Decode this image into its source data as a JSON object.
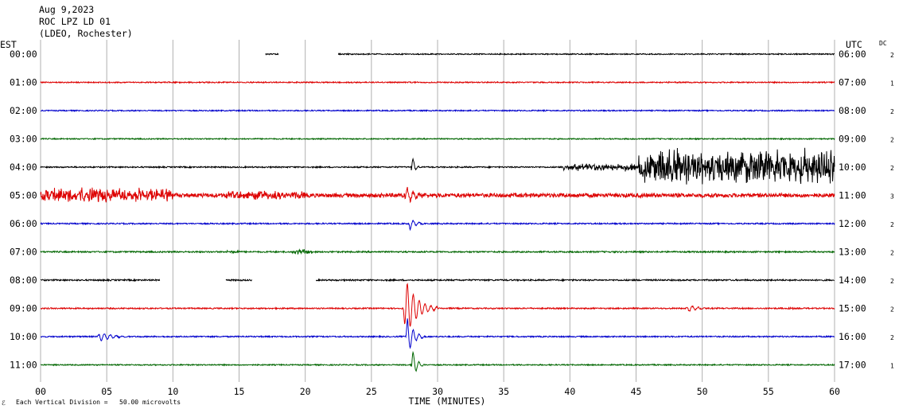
{
  "header": {
    "date": "Aug 9,2023",
    "station": "ROC LPZ LD 01",
    "network": "(LDEO, Rochester)"
  },
  "left_zone": "EST",
  "right_zone": "UTC",
  "dc_label": "DC",
  "scale_note": "Each Vertical Division =   50.00 microvolts",
  "corner_mark": "ℰ",
  "chart_data": {
    "type": "line",
    "xlabel": "TIME (MINUTES)",
    "xlim": [
      0,
      60
    ],
    "xticks": [
      "00",
      "05",
      "10",
      "15",
      "20",
      "25",
      "30",
      "35",
      "40",
      "45",
      "50",
      "55",
      "60"
    ],
    "vertical_divisions_minutes": 5,
    "trace_colors": [
      "#000000",
      "#dd0000",
      "#0000cc",
      "#006600"
    ],
    "rows": [
      {
        "est": "00:00",
        "utc": "06:00",
        "dc": "2",
        "segments": [
          [
            17,
            18
          ],
          [
            22.5,
            60
          ]
        ],
        "noise": 0.7,
        "events": []
      },
      {
        "est": "01:00",
        "utc": "07:00",
        "dc": "1",
        "segments": [
          [
            0,
            60
          ]
        ],
        "noise": 0.7,
        "events": []
      },
      {
        "est": "02:00",
        "utc": "08:00",
        "dc": "2",
        "segments": [
          [
            0,
            60
          ]
        ],
        "noise": 0.7,
        "events": []
      },
      {
        "est": "03:00",
        "utc": "09:00",
        "dc": "2",
        "segments": [
          [
            0,
            60
          ]
        ],
        "noise": 0.7,
        "events": []
      },
      {
        "est": "04:00",
        "utc": "10:00",
        "dc": "2",
        "segments": [
          [
            0,
            60
          ]
        ],
        "noise": 0.8,
        "events": [
          {
            "start": 39.5,
            "end": 45.2,
            "amp": 5,
            "kind": "noise"
          },
          {
            "start": 45.2,
            "end": 60,
            "amp": 24,
            "kind": "noise"
          },
          {
            "start": 28,
            "end": 28.6,
            "amp": 22,
            "kind": "wave"
          }
        ]
      },
      {
        "est": "05:00",
        "utc": "11:00",
        "dc": "3",
        "segments": [
          [
            0,
            60
          ]
        ],
        "noise": 2.5,
        "events": [
          {
            "start": 0,
            "end": 10,
            "amp": 9,
            "kind": "noise"
          },
          {
            "start": 14,
            "end": 20,
            "amp": 5,
            "kind": "noise"
          },
          {
            "start": 27.5,
            "end": 29.5,
            "amp": 12,
            "kind": "wave"
          }
        ]
      },
      {
        "est": "06:00",
        "utc": "12:00",
        "dc": "2",
        "segments": [
          [
            0,
            60
          ]
        ],
        "noise": 0.8,
        "events": [
          {
            "start": 27.8,
            "end": 29,
            "amp": 10,
            "kind": "wave"
          }
        ]
      },
      {
        "est": "07:00",
        "utc": "13:00",
        "dc": "2",
        "segments": [
          [
            0,
            60
          ]
        ],
        "noise": 0.9,
        "events": [
          {
            "start": 14,
            "end": 15,
            "amp": 2,
            "kind": "noise"
          },
          {
            "start": 19,
            "end": 20.5,
            "amp": 3,
            "kind": "noise"
          }
        ]
      },
      {
        "est": "08:00",
        "utc": "14:00",
        "dc": "2",
        "segments": [
          [
            0,
            9
          ],
          [
            14,
            16
          ],
          [
            20.8,
            60
          ]
        ],
        "noise": 0.9,
        "events": []
      },
      {
        "est": "09:00",
        "utc": "15:00",
        "dc": "2",
        "segments": [
          [
            0,
            60
          ]
        ],
        "noise": 0.8,
        "events": [
          {
            "start": 27.4,
            "end": 30,
            "amp": 45,
            "kind": "wave"
          },
          {
            "start": 48.8,
            "end": 50.5,
            "amp": 6,
            "kind": "wave"
          },
          {
            "start": 56.5,
            "end": 57,
            "amp": 2,
            "kind": "noise"
          }
        ]
      },
      {
        "est": "10:00",
        "utc": "16:00",
        "dc": "2",
        "segments": [
          [
            0,
            60
          ]
        ],
        "noise": 0.8,
        "events": [
          {
            "start": 4.3,
            "end": 7,
            "amp": 7,
            "kind": "wave"
          },
          {
            "start": 27.6,
            "end": 29,
            "amp": 30,
            "kind": "wave"
          }
        ]
      },
      {
        "est": "11:00",
        "utc": "17:00",
        "dc": "1",
        "segments": [
          [
            0,
            60
          ]
        ],
        "noise": 0.7,
        "events": [
          {
            "start": 28,
            "end": 29,
            "amp": 25,
            "kind": "wave"
          }
        ]
      }
    ]
  }
}
